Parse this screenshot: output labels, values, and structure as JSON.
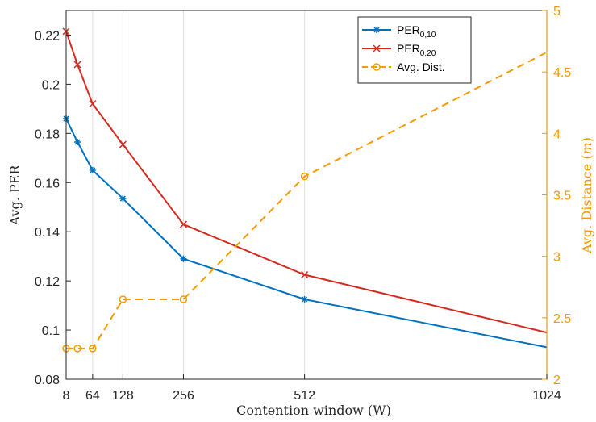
{
  "chart_data": {
    "type": "line",
    "x": [
      8,
      32,
      64,
      128,
      256,
      512,
      1024
    ],
    "xlabel": "Contention window (W)",
    "xticks": [
      "8",
      "64",
      "128",
      "256",
      "512",
      "1024"
    ],
    "xlim": [
      8,
      1024
    ],
    "grid_x": true,
    "grid_y": false,
    "y_left": {
      "label": "Avg. PER",
      "lim": [
        0.08,
        0.23
      ],
      "ticks": [
        "0.08",
        "0.1",
        "0.12",
        "0.14",
        "0.16",
        "0.18",
        "0.2",
        "0.22"
      ]
    },
    "y_right": {
      "label_main": "Avg. Distance (",
      "label_unit": "m",
      "label_end": ")",
      "lim": [
        2,
        5
      ],
      "ticks": [
        "2",
        "2.5",
        "3",
        "3.5",
        "4",
        "4.5",
        "5"
      ]
    },
    "series": [
      {
        "name": "PER",
        "subscript": "0,10",
        "axis": "left",
        "color": "#0072bd",
        "marker": "asterisk",
        "dashed": false,
        "x": [
          8,
          32,
          64,
          128,
          256,
          512,
          1024
        ],
        "values": [
          0.186,
          0.1765,
          0.165,
          0.1535,
          0.129,
          0.1125,
          0.093
        ],
        "marked": [
          true,
          true,
          true,
          true,
          true,
          true,
          false
        ]
      },
      {
        "name": "PER",
        "subscript": "0,20",
        "axis": "left",
        "color": "#d32a1e",
        "marker": "x",
        "dashed": false,
        "x": [
          8,
          32,
          64,
          128,
          256,
          512,
          1024
        ],
        "values": [
          0.2215,
          0.208,
          0.192,
          0.1755,
          0.143,
          0.1225,
          0.099
        ],
        "marked": [
          true,
          true,
          true,
          true,
          true,
          true,
          false
        ]
      },
      {
        "name": "Avg. Dist.",
        "subscript": "",
        "axis": "right",
        "color": "#f59a00",
        "marker": "circle",
        "dashed": true,
        "x": [
          8,
          32,
          64,
          128,
          256,
          512,
          1024
        ],
        "values": [
          2.25,
          2.25,
          2.25,
          2.65,
          2.65,
          3.65,
          4.66
        ],
        "marked": [
          true,
          true,
          true,
          true,
          true,
          true,
          false
        ]
      }
    ],
    "legend_position": "top-right"
  }
}
